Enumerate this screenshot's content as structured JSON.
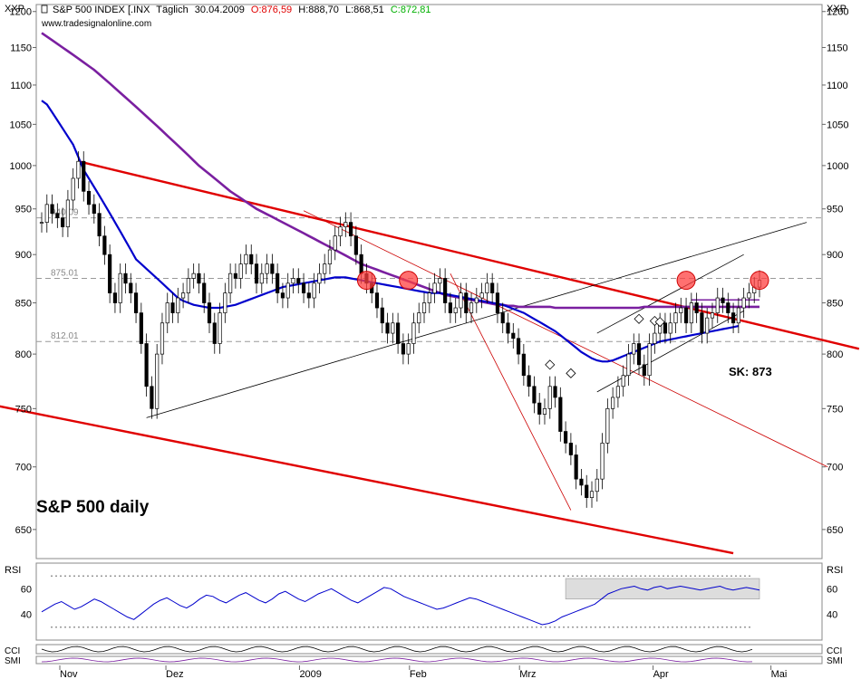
{
  "header": {
    "legend_icon": "candlestick-icon",
    "symbol": "S&P 500 INDEX [.INX",
    "period": "Täglich",
    "date": "30.04.2009",
    "open": "O:876,59",
    "high": "H:888,70",
    "low": "L:868,51",
    "close": "C:872,81",
    "watermark": "www.tradesignalonline.com",
    "colors": {
      "open": "#e00000",
      "close": "#00b000",
      "text": "#000000"
    }
  },
  "chart_data": {
    "type": "candlestick",
    "title": "S&P 500 daily",
    "annotation": "SK: 873",
    "axis_unit_left": "XXP",
    "axis_unit_right": "XXP",
    "price_ticks": [
      1200,
      1150,
      1100,
      1050,
      1000,
      950,
      900,
      850,
      800,
      750,
      700,
      650
    ],
    "ylim": [
      628,
      1210
    ],
    "y_scale": "log",
    "x_tick_labels": [
      "Nov",
      "Dez",
      "2009",
      "Feb",
      "Mrz",
      "Apr",
      "Mai"
    ],
    "levels": [
      {
        "label": "940.09",
        "value": 940
      },
      {
        "label": "875.01",
        "value": 875
      },
      {
        "label": "812.01",
        "value": 812
      }
    ],
    "candles_close": [
      935,
      955,
      945,
      940,
      930,
      960,
      985,
      1005,
      970,
      955,
      945,
      920,
      900,
      860,
      850,
      880,
      870,
      860,
      840,
      810,
      770,
      750,
      800,
      830,
      850,
      840,
      855,
      860,
      875,
      880,
      870,
      850,
      830,
      810,
      840,
      860,
      880,
      875,
      890,
      900,
      890,
      870,
      880,
      890,
      880,
      860,
      855,
      870,
      875,
      870,
      860,
      855,
      870,
      880,
      890,
      905,
      920,
      930,
      935,
      920,
      900,
      880,
      870,
      860,
      845,
      830,
      820,
      830,
      810,
      800,
      810,
      830,
      840,
      850,
      860,
      870,
      875,
      850,
      840,
      845,
      860,
      840,
      850,
      855,
      860,
      870,
      860,
      840,
      830,
      820,
      815,
      800,
      780,
      770,
      755,
      745,
      750,
      770,
      760,
      730,
      720,
      710,
      690,
      685,
      675,
      680,
      690,
      720,
      750,
      760,
      770,
      780,
      800,
      810,
      790,
      780,
      810,
      820,
      830,
      820,
      830,
      840,
      845,
      830,
      850,
      840,
      820,
      835,
      840,
      855,
      850,
      840,
      830,
      845,
      855,
      860,
      866,
      873
    ],
    "ma_fast": {
      "name": "",
      "color": "#0000cc",
      "values": [
        1080,
        1075,
        1065,
        1055,
        1045,
        1035,
        1025,
        1010,
        995,
        985,
        975,
        965,
        955,
        945,
        935,
        925,
        915,
        905,
        895,
        890,
        885,
        880,
        875,
        870,
        865,
        860,
        855,
        852,
        850,
        848,
        847,
        846,
        845,
        845,
        845,
        846,
        847,
        848,
        850,
        852,
        854,
        856,
        858,
        860,
        862,
        864,
        866,
        867,
        868,
        869,
        870,
        871,
        872,
        873,
        874,
        875,
        876,
        876,
        876,
        875,
        874,
        873,
        872,
        871,
        870,
        869,
        868,
        867,
        866,
        865,
        864,
        863,
        862,
        861,
        860,
        860,
        860,
        859,
        858,
        857,
        856,
        855,
        854,
        853,
        852,
        851,
        850,
        849,
        848,
        846,
        844,
        842,
        840,
        837,
        834,
        831,
        828,
        825,
        822,
        818,
        814,
        810,
        806,
        802,
        799,
        796,
        794,
        793,
        793,
        794,
        796,
        798,
        800,
        802,
        804,
        806,
        808,
        810,
        812,
        813,
        814,
        815,
        816,
        817,
        818,
        819,
        820,
        821,
        822,
        823,
        824,
        825,
        826,
        827
      ]
    },
    "ma_slow": {
      "name": "",
      "color": "#7a1fa0",
      "values": [
        1170,
        1165,
        1160,
        1155,
        1150,
        1145,
        1140,
        1135,
        1130,
        1125,
        1120,
        1114,
        1108,
        1102,
        1096,
        1090,
        1084,
        1078,
        1072,
        1066,
        1060,
        1054,
        1048,
        1042,
        1036,
        1030,
        1024,
        1018,
        1012,
        1006,
        1000,
        995,
        990,
        985,
        980,
        975,
        970,
        966,
        962,
        958,
        954,
        950,
        947,
        944,
        941,
        938,
        935,
        932,
        929,
        926,
        923,
        920,
        917,
        914,
        911,
        908,
        905,
        902,
        899,
        896,
        893,
        890,
        888,
        886,
        884,
        882,
        880,
        878,
        876,
        874,
        872,
        870,
        868,
        866,
        864,
        862,
        860,
        858,
        857,
        856,
        855,
        854,
        853,
        852,
        851,
        850,
        849,
        848,
        848,
        847,
        847,
        846,
        846,
        846,
        846,
        846,
        846,
        846,
        845,
        845,
        845,
        845,
        845,
        845,
        845,
        845,
        845,
        845,
        845,
        845,
        845,
        845,
        845,
        845,
        845,
        846,
        846,
        846,
        846,
        846,
        846,
        846,
        846,
        846,
        846,
        846,
        846,
        846,
        846,
        846,
        846,
        846,
        846,
        846,
        846,
        846,
        846,
        846
      ]
    },
    "rsi": {
      "label": "RSI",
      "ticks": [
        60,
        40
      ],
      "ylim": [
        20,
        80
      ],
      "overbought": 70,
      "oversold": 30,
      "values": [
        42,
        45,
        48,
        50,
        47,
        44,
        46,
        49,
        52,
        50,
        47,
        44,
        41,
        38,
        36,
        40,
        44,
        48,
        51,
        53,
        50,
        47,
        45,
        48,
        52,
        55,
        54,
        51,
        49,
        52,
        55,
        57,
        54,
        51,
        49,
        52,
        56,
        58,
        55,
        52,
        50,
        53,
        56,
        58,
        60,
        57,
        54,
        51,
        49,
        52,
        55,
        58,
        61,
        60,
        57,
        54,
        52,
        50,
        48,
        46,
        44,
        45,
        47,
        49,
        51,
        53,
        52,
        50,
        48,
        46,
        44,
        42,
        40,
        38,
        36,
        34,
        32,
        33,
        35,
        38,
        40,
        42,
        44,
        46,
        48,
        52,
        56,
        58,
        60,
        61,
        62,
        60,
        59,
        61,
        62,
        60,
        61,
        62,
        61,
        60,
        59,
        60,
        61,
        62,
        60,
        59,
        60,
        61,
        60,
        59
      ]
    },
    "cci": {
      "label": "CCI"
    },
    "sml": {
      "label": "SMI"
    }
  }
}
